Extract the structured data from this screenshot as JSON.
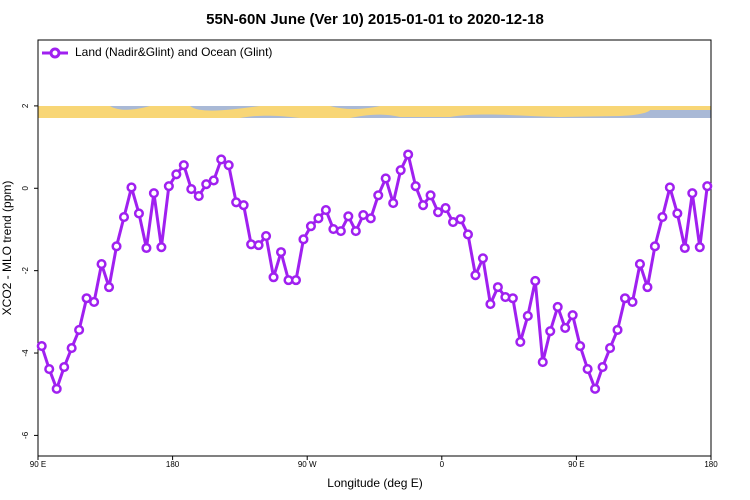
{
  "chart_data": {
    "type": "line",
    "title": "55N-60N June (Ver 10)   2015-01-01 to 2020-12-18",
    "x_label": "Longitude (deg E)",
    "y_label": "XCO2 - MLO trend (ppm)",
    "legend_position": "top-left",
    "xlim": [
      90,
      540
    ],
    "ylim": [
      -6.5,
      3.6
    ],
    "xticks": [
      {
        "value": 90,
        "label": "90 E"
      },
      {
        "value": 180,
        "label": "180"
      },
      {
        "value": 270,
        "label": "90 W"
      },
      {
        "value": 360,
        "label": "0"
      },
      {
        "value": 450,
        "label": "90 E"
      },
      {
        "value": 540,
        "label": "180"
      }
    ],
    "yticks": [
      -6,
      -4,
      -2,
      0,
      2
    ],
    "x": [
      92.5,
      97.5,
      102.5,
      107.5,
      112.5,
      117.5,
      122.5,
      127.5,
      132.5,
      137.5,
      142.5,
      147.5,
      152.5,
      157.5,
      162.5,
      167.5,
      172.5,
      177.5,
      182.5,
      187.5,
      192.5,
      197.5,
      202.5,
      207.5,
      212.5,
      217.5,
      222.5,
      227.5,
      232.5,
      237.5,
      242.5,
      247.5,
      252.5,
      257.5,
      262.5,
      267.5,
      272.5,
      277.5,
      282.5,
      287.5,
      292.5,
      297.5,
      302.5,
      307.5,
      312.5,
      317.5,
      322.5,
      327.5,
      332.5,
      337.5,
      342.5,
      347.5,
      352.5,
      357.5,
      362.5,
      367.5,
      372.5,
      377.5,
      382.5,
      387.5,
      392.5,
      397.5,
      402.5,
      407.5,
      412.5,
      417.5,
      422.5,
      427.5,
      432.5,
      437.5,
      442.5,
      447.5,
      452.5,
      457.5,
      462.5,
      467.5,
      472.5,
      477.5,
      482.5,
      487.5,
      492.5,
      497.5,
      502.5,
      507.5,
      512.5,
      517.5,
      522.5,
      527.5,
      532.5,
      537.5
    ],
    "series": [
      {
        "name": "Land (Nadir&Glint) and Ocean (Glint)",
        "color": "#a020f0",
        "values": [
          -3.83,
          -4.39,
          -4.87,
          -4.34,
          -3.88,
          -3.44,
          -2.67,
          -2.76,
          -1.84,
          -2.4,
          -1.41,
          -0.7,
          0.02,
          -0.61,
          -1.45,
          -0.12,
          -1.43,
          0.05,
          0.34,
          0.56,
          -0.02,
          -0.19,
          0.1,
          0.19,
          0.7,
          0.56,
          -0.34,
          -0.41,
          -1.36,
          -1.38,
          -1.16,
          -2.16,
          -1.55,
          -2.23,
          -2.23,
          -1.24,
          -0.92,
          -0.73,
          -0.53,
          -0.99,
          -1.04,
          -0.68,
          -1.04,
          -0.65,
          -0.73,
          -0.17,
          0.24,
          -0.36,
          0.44,
          0.82,
          0.05,
          -0.41,
          -0.17,
          -0.58,
          -0.48,
          -0.82,
          -0.75,
          -1.12,
          -2.11,
          -1.7,
          -2.81,
          -2.4,
          -2.64,
          -2.67,
          -3.73,
          -3.1,
          -2.25,
          -4.22,
          -3.47,
          -2.88,
          -3.39,
          -3.08,
          -3.83,
          -4.39,
          -4.87,
          -4.34,
          -3.88,
          -3.44,
          -2.67,
          -2.76,
          -1.84,
          -2.4,
          -1.41,
          -0.7,
          0.02,
          -0.61,
          -1.45,
          -0.12,
          -1.43,
          0.05
        ]
      }
    ]
  }
}
